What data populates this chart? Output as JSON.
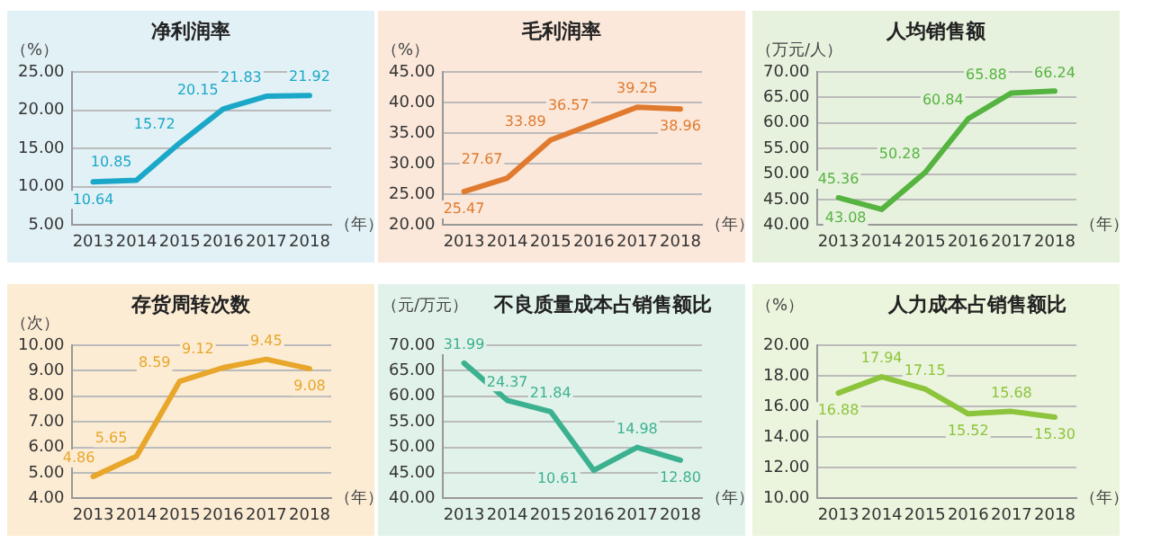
{
  "chart_data": [
    {
      "type": "line",
      "title": "净利润率",
      "ylabel": "（%）",
      "xlabel": "（年）",
      "categories": [
        "2013",
        "2014",
        "2015",
        "2016",
        "2017",
        "2018"
      ],
      "grid": "y",
      "ylim": [
        5,
        25
      ],
      "yticks": [
        {
          "value": 5,
          "label": "5.00"
        },
        {
          "value": 10,
          "label": "10.00"
        },
        {
          "value": 15,
          "label": "15.00"
        },
        {
          "value": 20,
          "label": "20.00"
        },
        {
          "value": 25,
          "label": "25.00"
        }
      ],
      "series": [
        {
          "color": "#1ba8c8",
          "values": [
            10.64,
            10.85,
            15.72,
            20.15,
            21.83,
            21.92
          ],
          "value_labels": [
            "10.64",
            "10.85",
            "15.72",
            "20.15",
            "21.83",
            "21.92"
          ]
        }
      ]
    },
    {
      "type": "line",
      "title": "毛利润率",
      "ylabel": "（%）",
      "xlabel": "（年）",
      "categories": [
        "2013",
        "2014",
        "2015",
        "2016",
        "2017",
        "2018"
      ],
      "grid": "y",
      "ylim": [
        20,
        45
      ],
      "yticks": [
        {
          "value": 20,
          "label": "20.00"
        },
        {
          "value": 25,
          "label": "25.00"
        },
        {
          "value": 30,
          "label": "30.00"
        },
        {
          "value": 35,
          "label": "35.00"
        },
        {
          "value": 40,
          "label": "40.00"
        },
        {
          "value": 45,
          "label": "45.00"
        }
      ],
      "series": [
        {
          "color": "#e07a2e",
          "values": [
            25.47,
            27.67,
            33.89,
            36.57,
            39.25,
            38.96
          ],
          "value_labels": [
            "25.47",
            "27.67",
            "33.89",
            "36.57",
            "39.25",
            "38.96"
          ]
        }
      ]
    },
    {
      "type": "line",
      "title": "人均销售额",
      "ylabel": "（万元/人）",
      "xlabel": "（年）",
      "categories": [
        "2013",
        "2014",
        "2015",
        "2016",
        "2017",
        "2018"
      ],
      "grid": "y",
      "ylim": [
        40,
        70
      ],
      "yticks": [
        {
          "value": 40,
          "label": "40.00"
        },
        {
          "value": 45,
          "label": "45.00"
        },
        {
          "value": 50,
          "label": "50.00"
        },
        {
          "value": 55,
          "label": "55.00"
        },
        {
          "value": 60,
          "label": "60.00"
        },
        {
          "value": 65,
          "label": "65.00"
        },
        {
          "value": 70,
          "label": "70.00"
        }
      ],
      "series": [
        {
          "color": "#55b340",
          "values": [
            45.36,
            43.08,
            50.28,
            60.84,
            65.88,
            66.24
          ],
          "value_labels": [
            "45.36",
            "43.08",
            "50.28",
            "60.84",
            "65.88",
            "66.24"
          ]
        }
      ]
    },
    {
      "type": "line",
      "title": "存货周转次数",
      "ylabel": "（次）",
      "xlabel": "（年）",
      "categories": [
        "2013",
        "2014",
        "2015",
        "2016",
        "2017",
        "2018"
      ],
      "grid": "y",
      "ylim": [
        4,
        10
      ],
      "yticks": [
        {
          "value": 4,
          "label": "4.00"
        },
        {
          "value": 5,
          "label": "5.00"
        },
        {
          "value": 6,
          "label": "6.00"
        },
        {
          "value": 7,
          "label": "7.00"
        },
        {
          "value": 8,
          "label": "8.00"
        },
        {
          "value": 9,
          "label": "9.00"
        },
        {
          "value": 10,
          "label": "10.00"
        }
      ],
      "series": [
        {
          "color": "#e8a62a",
          "values": [
            4.86,
            5.65,
            8.59,
            9.12,
            9.45,
            9.08
          ],
          "value_labels": [
            "4.86",
            "5.65",
            "8.59",
            "9.12",
            "9.45",
            "9.08"
          ]
        }
      ]
    },
    {
      "type": "line",
      "title": "不良质量成本占销售额比",
      "ylabel": "（元/万元）",
      "xlabel": "（年）",
      "categories": [
        "2013",
        "2014",
        "2015",
        "2016",
        "2017",
        "2018"
      ],
      "grid": "y",
      "ylim": [
        40,
        70
      ],
      "yticks": [
        {
          "value": 40,
          "label": "40.00"
        },
        {
          "value": 45,
          "label": "45.00"
        },
        {
          "value": 50,
          "label": "50.00"
        },
        {
          "value": 55,
          "label": "55.00"
        },
        {
          "value": 60,
          "label": "60.00"
        },
        {
          "value": 65,
          "label": "65.00"
        },
        {
          "value": 70,
          "label": "70.00"
        }
      ],
      "annotations": [
        {
          "text": "31.99",
          "x": "2013",
          "y": 66.5
        },
        {
          "text": "24.37",
          "x": "2014",
          "y": 59.2
        },
        {
          "text": "21.84",
          "x": "2015",
          "y": 57.0
        },
        {
          "text": "10.61",
          "x": "2016",
          "y": 45.5
        },
        {
          "text": "14.98",
          "x": "2017",
          "y": 50.0
        },
        {
          "text": "12.80",
          "x": "2018",
          "y": 47.5
        }
      ],
      "series": [
        {
          "color": "#3bb190",
          "values": [
            66.5,
            59.2,
            57.0,
            45.5,
            50.0,
            47.5
          ]
        }
      ]
    },
    {
      "type": "line",
      "title": "人力成本占销售额比",
      "ylabel": "（%）",
      "xlabel": "（年）",
      "categories": [
        "2013",
        "2014",
        "2015",
        "2016",
        "2017",
        "2018"
      ],
      "grid": "y",
      "ylim": [
        10,
        20
      ],
      "yticks": [
        {
          "value": 10,
          "label": "10.00"
        },
        {
          "value": 12,
          "label": "12.00"
        },
        {
          "value": 14,
          "label": "14.00"
        },
        {
          "value": 16,
          "label": "16.00"
        },
        {
          "value": 18,
          "label": "18.00"
        },
        {
          "value": 20,
          "label": "20.00"
        }
      ],
      "series": [
        {
          "color": "#8cc43c",
          "values": [
            16.88,
            17.94,
            17.15,
            15.52,
            15.68,
            15.3
          ],
          "value_labels": [
            "16.88",
            "17.94",
            "17.15",
            "15.52",
            "15.68",
            "15.30"
          ]
        }
      ]
    }
  ]
}
